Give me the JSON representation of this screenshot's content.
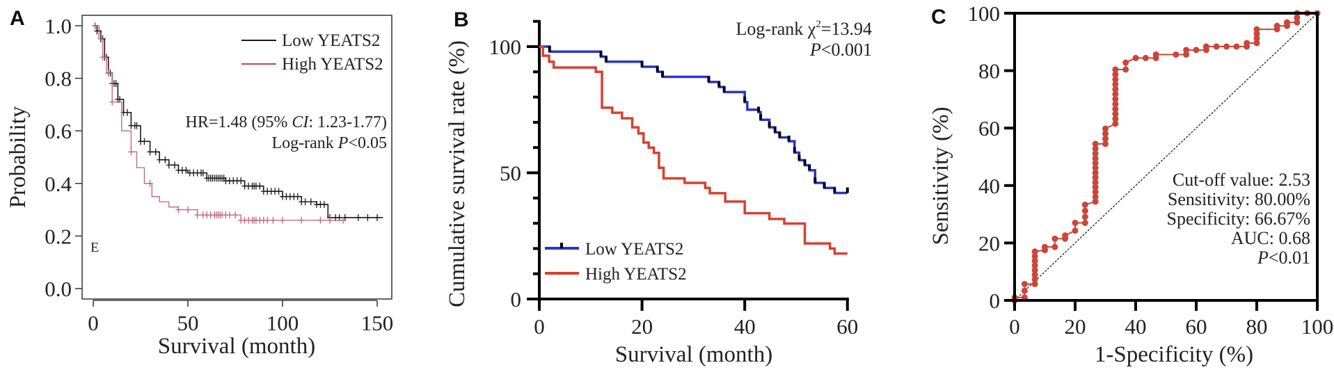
{
  "chart_data": [
    {
      "panel_label": "A",
      "type": "line",
      "subtype": "kaplan-meier",
      "xlabel": "Survival (month)",
      "ylabel": "Probability",
      "xlim": [
        0,
        150
      ],
      "ylim": [
        0,
        1
      ],
      "xticks": [
        "0",
        "50",
        "100",
        "150"
      ],
      "xtick_values": [
        0,
        50,
        100,
        150
      ],
      "yticks": [
        "0.0",
        "0.2",
        "0.4",
        "0.6",
        "0.8",
        "1.0"
      ],
      "ytick_values": [
        0,
        0.2,
        0.4,
        0.6,
        0.8,
        1.0
      ],
      "grid": false,
      "legend_position": "top-right",
      "stray_mark": "E",
      "annotations": {
        "hr_prefix": "HR=1.48 (95% ",
        "hr_italic": "CI",
        "hr_suffix": ": 1.23-1.77)",
        "logrank_prefix": "Log-rank ",
        "logrank_italic": "P",
        "logrank_suffix": "<0.05"
      },
      "series": [
        {
          "name": "Low YEATS2",
          "color": "#1a1a1a",
          "steps": [
            [
              0,
              1.0
            ],
            [
              2,
              0.98
            ],
            [
              4,
              0.95
            ],
            [
              6,
              0.88
            ],
            [
              8,
              0.82
            ],
            [
              10,
              0.78
            ],
            [
              13,
              0.72
            ],
            [
              16,
              0.67
            ],
            [
              20,
              0.62
            ],
            [
              25,
              0.56
            ],
            [
              30,
              0.52
            ],
            [
              35,
              0.49
            ],
            [
              40,
              0.47
            ],
            [
              45,
              0.45
            ],
            [
              50,
              0.44
            ],
            [
              60,
              0.42
            ],
            [
              70,
              0.41
            ],
            [
              80,
              0.39
            ],
            [
              90,
              0.37
            ],
            [
              100,
              0.35
            ],
            [
              110,
              0.33
            ],
            [
              118,
              0.32
            ],
            [
              124,
              0.27
            ],
            [
              153,
              0.27
            ]
          ],
          "censored": [
            1,
            2,
            3,
            4,
            5,
            6,
            7,
            8,
            9,
            10,
            11,
            12,
            13,
            14,
            16,
            18,
            20,
            22,
            23,
            25,
            27,
            30,
            33,
            35,
            38,
            40,
            43,
            45,
            47,
            49,
            51,
            53,
            55,
            57,
            58,
            60,
            61,
            62,
            63,
            64,
            65,
            66,
            67,
            68,
            69,
            70,
            72,
            74,
            76,
            78,
            80,
            82,
            84,
            85,
            86,
            88,
            90,
            92,
            94,
            96,
            98,
            100,
            102,
            104,
            106,
            108,
            110,
            112,
            115,
            118,
            120,
            122,
            125,
            128,
            130,
            133,
            140,
            145,
            150
          ]
        },
        {
          "name": "High YEATS2",
          "color": "#c0647a",
          "steps": [
            [
              0,
              1.0
            ],
            [
              3,
              0.95
            ],
            [
              5,
              0.88
            ],
            [
              7,
              0.82
            ],
            [
              10,
              0.71
            ],
            [
              15,
              0.6
            ],
            [
              20,
              0.52
            ],
            [
              23,
              0.46
            ],
            [
              27,
              0.4
            ],
            [
              31,
              0.35
            ],
            [
              35,
              0.33
            ],
            [
              40,
              0.31
            ],
            [
              45,
              0.3
            ],
            [
              55,
              0.28
            ],
            [
              78,
              0.26
            ],
            [
              132,
              0.26
            ]
          ],
          "censored": [
            1,
            5,
            8,
            10,
            20,
            30,
            45,
            50,
            55,
            58,
            60,
            62,
            64,
            65,
            66,
            67,
            68,
            70,
            72,
            75,
            78,
            80,
            82,
            84,
            85,
            86,
            88,
            90,
            92,
            95,
            100,
            110,
            120,
            125,
            132
          ]
        }
      ]
    },
    {
      "panel_label": "B",
      "type": "line",
      "subtype": "kaplan-meier",
      "xlabel": "Survival (month)",
      "ylabel": "Cumulative survival rate (%)",
      "xlim": [
        0,
        60
      ],
      "ylim": [
        0,
        110
      ],
      "xticks": [
        "0",
        "20",
        "40",
        "60"
      ],
      "xtick_values": [
        0,
        20,
        40,
        60
      ],
      "yticks": [
        "0",
        "50",
        "100"
      ],
      "ytick_values": [
        0,
        50,
        100
      ],
      "grid": false,
      "legend_position": "bottom-left",
      "annotations": {
        "chi_prefix": "Log-rank χ",
        "chi_sup": "2",
        "chi_suffix": "=13.94",
        "p_italic": "P",
        "p_suffix": "<0.001"
      },
      "series": [
        {
          "name": "Low YEATS2",
          "color": "#2b35c8",
          "censor_color": "#000000",
          "steps": [
            [
              0,
              100
            ],
            [
              2,
              98
            ],
            [
              12,
              96
            ],
            [
              13,
              94
            ],
            [
              20,
              92
            ],
            [
              23,
              90
            ],
            [
              24,
              88
            ],
            [
              33,
              86
            ],
            [
              35,
              84
            ],
            [
              36,
              82
            ],
            [
              40,
              78
            ],
            [
              40.5,
              75
            ],
            [
              42.7,
              74
            ],
            [
              43.1,
              71
            ],
            [
              44.8,
              68
            ],
            [
              45.9,
              66
            ],
            [
              46.8,
              64
            ],
            [
              48.6,
              62.5
            ],
            [
              49.7,
              58
            ],
            [
              50.6,
              55
            ],
            [
              51.7,
              53
            ],
            [
              52.6,
              51
            ],
            [
              53.7,
              46
            ],
            [
              55.5,
              44
            ],
            [
              57.5,
              42
            ],
            [
              60,
              42
            ]
          ],
          "censored": [
            2,
            12,
            13,
            20,
            23,
            24,
            33,
            35,
            36,
            40,
            42.7,
            43.1,
            44.8,
            45.9,
            46.8,
            48.6,
            49.7,
            50.6,
            51.7,
            52.6,
            53.7,
            55.5,
            57.5,
            60
          ]
        },
        {
          "name": "High YEATS2",
          "color": "#d9402f",
          "steps": [
            [
              0,
              100
            ],
            [
              0.7,
              96.4
            ],
            [
              1.9,
              94
            ],
            [
              2.8,
              91.7
            ],
            [
              11,
              90
            ],
            [
              12.2,
              75.8
            ],
            [
              14.2,
              73.8
            ],
            [
              16.1,
              71.6
            ],
            [
              18.1,
              68
            ],
            [
              19.3,
              65.6
            ],
            [
              20.3,
              62
            ],
            [
              21.3,
              60
            ],
            [
              22.3,
              57.9
            ],
            [
              23.3,
              52
            ],
            [
              24.2,
              47.8
            ],
            [
              28.3,
              46
            ],
            [
              32.3,
              44
            ],
            [
              33.2,
              41.9
            ],
            [
              36.2,
              38.6
            ],
            [
              40,
              34
            ],
            [
              44.8,
              31.7
            ],
            [
              47.7,
              29.9
            ],
            [
              51.7,
              22
            ],
            [
              56.6,
              20
            ],
            [
              57.5,
              18
            ],
            [
              60,
              18
            ]
          ],
          "censored": []
        }
      ]
    },
    {
      "panel_label": "C",
      "type": "line",
      "subtype": "roc",
      "xlabel": "1-Specificity (%)",
      "ylabel": "Sensitivity (%)",
      "xlim": [
        0,
        100
      ],
      "ylim": [
        0,
        100
      ],
      "xticks": [
        "0",
        "20",
        "40",
        "60",
        "80",
        "100"
      ],
      "xtick_values": [
        0,
        20,
        40,
        60,
        80,
        100
      ],
      "yticks": [
        "0",
        "20",
        "40",
        "60",
        "80",
        "100"
      ],
      "ytick_values": [
        0,
        20,
        40,
        60,
        80,
        100
      ],
      "grid": false,
      "reference_line": "diagonal-dashed",
      "color": "#c9463a",
      "points": [
        [
          0,
          0
        ],
        [
          0,
          1
        ],
        [
          3.3,
          1
        ],
        [
          3.3,
          5.7
        ],
        [
          6.7,
          5.7
        ],
        [
          6.7,
          17
        ],
        [
          10,
          17.5
        ],
        [
          10,
          18.6
        ],
        [
          13.3,
          18.6
        ],
        [
          13.3,
          21.5
        ],
        [
          16.7,
          21.5
        ],
        [
          16.7,
          22.6
        ],
        [
          20,
          24.3
        ],
        [
          20,
          27
        ],
        [
          23.3,
          27
        ],
        [
          23.3,
          33.3
        ],
        [
          26.7,
          34.4
        ],
        [
          26.7,
          54.5
        ],
        [
          30,
          54.5
        ],
        [
          30,
          59.8
        ],
        [
          33.3,
          61.5
        ],
        [
          33.3,
          80.4
        ],
        [
          36.7,
          80.4
        ],
        [
          36.7,
          82.8
        ],
        [
          40,
          84.4
        ],
        [
          43.3,
          84.4
        ],
        [
          46.7,
          84.4
        ],
        [
          46.7,
          85.6
        ],
        [
          53.3,
          85.6
        ],
        [
          56.7,
          85.6
        ],
        [
          56.7,
          87.2
        ],
        [
          60,
          87.2
        ],
        [
          63.3,
          87.2
        ],
        [
          63.3,
          88.4
        ],
        [
          66.7,
          88.4
        ],
        [
          70,
          88.4
        ],
        [
          73.3,
          88.4
        ],
        [
          76.7,
          88.4
        ],
        [
          76.7,
          89.6
        ],
        [
          80,
          89.6
        ],
        [
          80,
          94.4
        ],
        [
          86.7,
          94.4
        ],
        [
          86.7,
          95.6
        ],
        [
          90,
          95.6
        ],
        [
          90,
          96.8
        ],
        [
          93.3,
          96.8
        ],
        [
          93.3,
          100
        ],
        [
          96.7,
          100
        ],
        [
          100,
          100
        ]
      ],
      "annotations": {
        "cutoff": "Cut-off value: 2.53",
        "sensitivity": "Sensitivity: 80.00%",
        "specificity": "Specificity: 66.67%",
        "auc": "AUC: 0.68",
        "p_italic": "P",
        "p_suffix": "<0.01"
      }
    }
  ]
}
